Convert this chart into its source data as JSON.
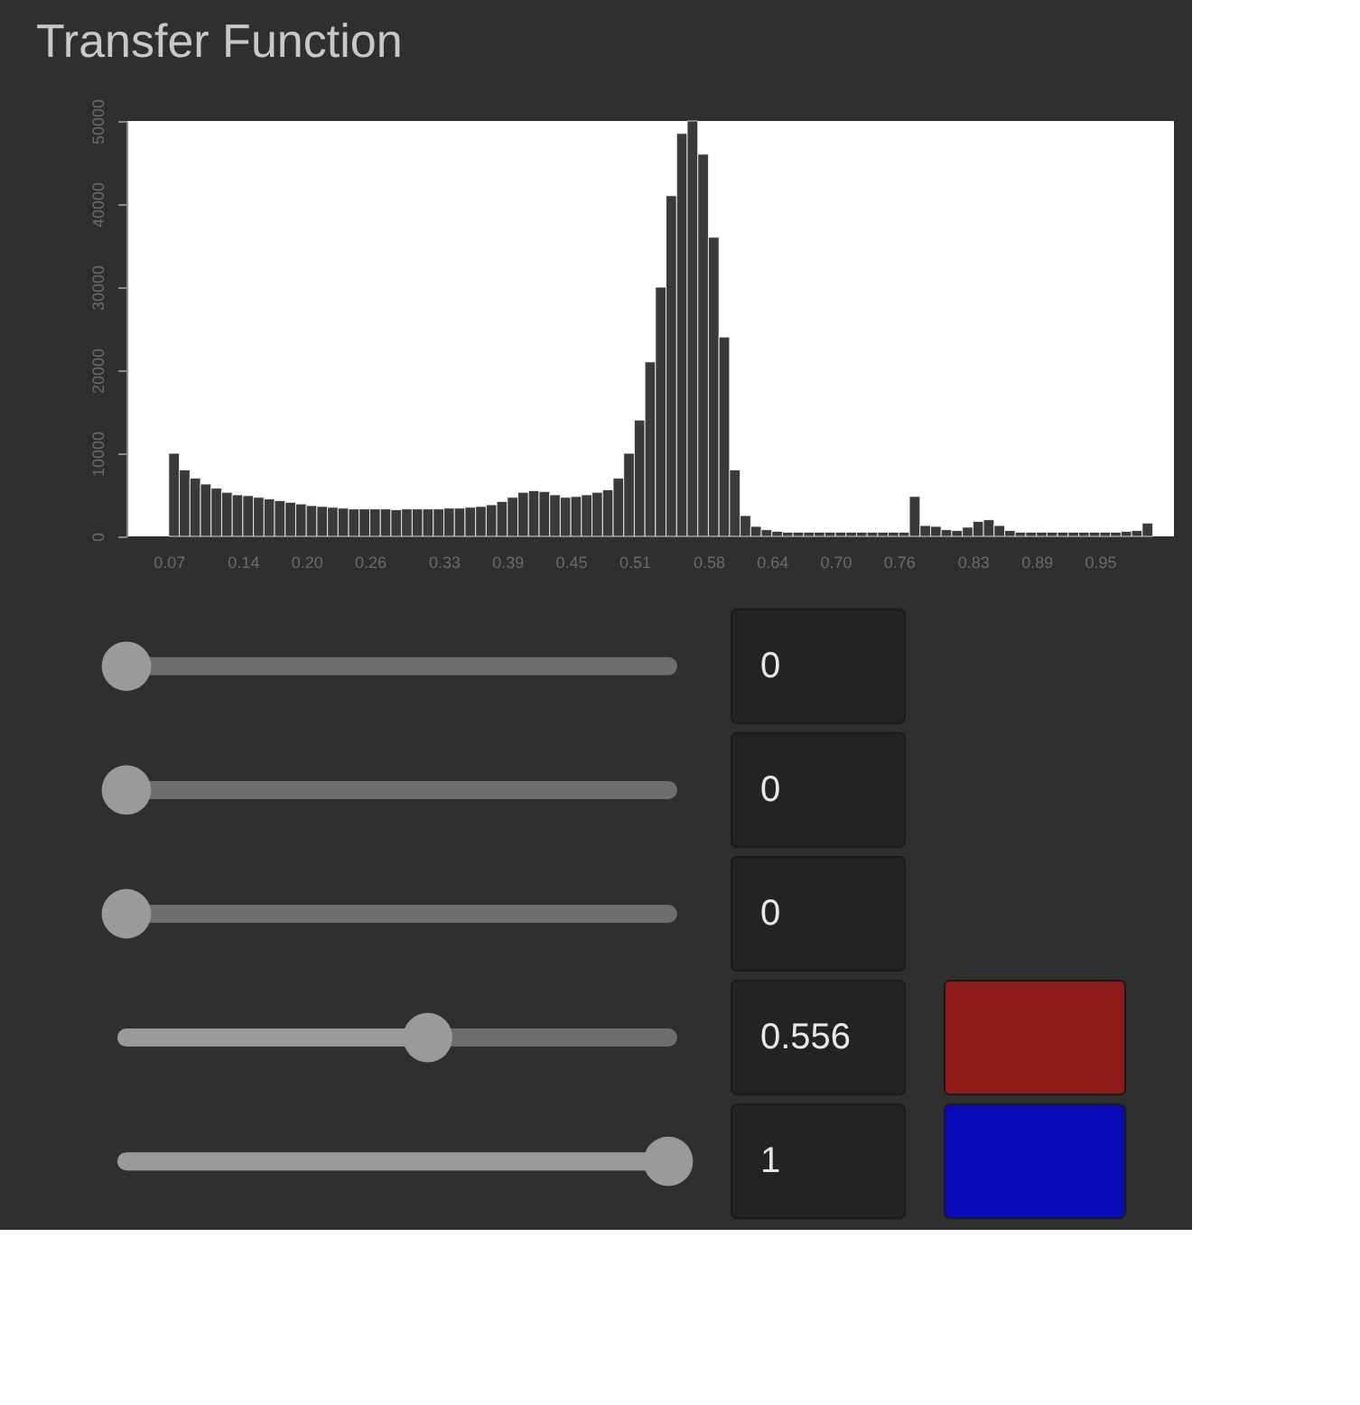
{
  "chart_data": [
    {
      "type": "histogram",
      "title": "Transfer Function",
      "color": "#3a3a3a",
      "bins": [
        0.07,
        0.08,
        0.09,
        0.1,
        0.11,
        0.12,
        0.13,
        0.14,
        0.15,
        0.16,
        0.17,
        0.18,
        0.19,
        0.2,
        0.21,
        0.22,
        0.23,
        0.24,
        0.25,
        0.26,
        0.27,
        0.28,
        0.29,
        0.3,
        0.31,
        0.32,
        0.33,
        0.34,
        0.35,
        0.36,
        0.37,
        0.38,
        0.39,
        0.4,
        0.41,
        0.42,
        0.43,
        0.44,
        0.45,
        0.46,
        0.47,
        0.48,
        0.49,
        0.5,
        0.51,
        0.52,
        0.53,
        0.54,
        0.55,
        0.56,
        0.57,
        0.58,
        0.59,
        0.6,
        0.61,
        0.62,
        0.63,
        0.64,
        0.65,
        0.66,
        0.67,
        0.68,
        0.69,
        0.7,
        0.71,
        0.72,
        0.73,
        0.74,
        0.75,
        0.76,
        0.77,
        0.78,
        0.79,
        0.8,
        0.81,
        0.82,
        0.83,
        0.84,
        0.85,
        0.86,
        0.87,
        0.88,
        0.89,
        0.9,
        0.91,
        0.92,
        0.93,
        0.94,
        0.95,
        0.96,
        0.97,
        0.98,
        0.99,
        1.0
      ],
      "values": [
        10000,
        8000,
        7000,
        6300,
        5800,
        5300,
        5000,
        4900,
        4700,
        4500,
        4300,
        4100,
        3900,
        3700,
        3600,
        3500,
        3400,
        3300,
        3300,
        3300,
        3300,
        3200,
        3300,
        3300,
        3300,
        3300,
        3400,
        3400,
        3500,
        3600,
        3800,
        4200,
        4700,
        5300,
        5500,
        5400,
        5000,
        4700,
        4800,
        5000,
        5300,
        5600,
        7000,
        10000,
        14000,
        21000,
        30000,
        41000,
        48500,
        50000,
        46000,
        36000,
        24000,
        8000,
        2500,
        1200,
        800,
        600,
        500,
        500,
        500,
        500,
        500,
        500,
        500,
        500,
        500,
        500,
        500,
        500,
        4800,
        1300,
        1200,
        800,
        700,
        1100,
        1800,
        2000,
        1300,
        700,
        500,
        500,
        500,
        500,
        500,
        500,
        500,
        500,
        500,
        500,
        600,
        700,
        1600
      ],
      "xlim": [
        0.03,
        1.02
      ],
      "xticks": [
        0.07,
        0.14,
        {
          "value": 0.2,
          "label": "0.20"
        },
        0.26,
        0.33,
        0.39,
        0.45,
        0.51,
        0.58,
        0.64,
        {
          "value": 0.7,
          "label": "0.70"
        },
        0.76,
        0.83,
        0.89,
        0.95
      ],
      "ylim": [
        0,
        50000
      ],
      "yticks": [
        0,
        10000,
        20000,
        30000,
        40000,
        50000
      ]
    },
    {
      "type": "other",
      "values": [
        0,
        0,
        0,
        0.556,
        1
      ],
      "data_labels": true,
      "colors": [
        null,
        null,
        null,
        "#8f1a1a",
        "#0a0ab8"
      ]
    }
  ]
}
